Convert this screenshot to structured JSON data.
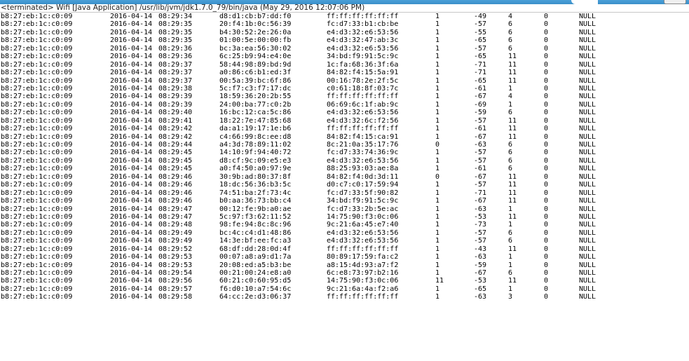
{
  "status": {
    "text": "<terminated> Wifi [Java Application] /usr/lib/jvm/jdk1.7.0_79/bin/java (May 29, 2016 12:07:06 PM)"
  },
  "rows": [
    [
      "b8:27:eb:1c:c0:09",
      "2016-04-14",
      "08:29:34",
      "d8:d1:cb:b7:dd:f0",
      "ff:ff:ff:ff:ff:ff",
      "1",
      "-49",
      "4",
      "0",
      "NULL"
    ],
    [
      "b8:27:eb:1c:c0:09",
      "2016-04-14",
      "08:29:35",
      "20:f4:1b:0c:56:39",
      "fc:d7:33:b1:cb:be",
      "1",
      "-57",
      "6",
      "0",
      "NULL"
    ],
    [
      "b8:27:eb:1c:c0:09",
      "2016-04-14",
      "08:29:35",
      "b4:30:52:2e:26:0a",
      "e4:d3:32:e6:53:56",
      "1",
      "-55",
      "6",
      "0",
      "NULL"
    ],
    [
      "b8:27:eb:1c:c0:09",
      "2016-04-14",
      "08:29:35",
      "01:00:5e:00:00:fb",
      "e4:d3:32:47:ab:3c",
      "1",
      "-65",
      "6",
      "0",
      "NULL"
    ],
    [
      "b8:27:eb:1c:c0:09",
      "2016-04-14",
      "08:29:36",
      "bc:3a:ea:56:30:02",
      "e4:d3:32:e6:53:56",
      "1",
      "-57",
      "6",
      "0",
      "NULL"
    ],
    [
      "b8:27:eb:1c:c0:09",
      "2016-04-14",
      "08:29:36",
      "6c:25:b9:94:e4:0e",
      "34:bd:f9:91:5c:9c",
      "1",
      "-65",
      "11",
      "0",
      "NULL"
    ],
    [
      "b8:27:eb:1c:c0:09",
      "2016-04-14",
      "08:29:37",
      "58:44:98:89:bd:9d",
      "1c:fa:68:36:3f:6a",
      "1",
      "-71",
      "11",
      "0",
      "NULL"
    ],
    [
      "b8:27:eb:1c:c0:09",
      "2016-04-14",
      "08:29:37",
      "a0:86:c6:b1:ed:3f",
      "84:82:f4:15:5a:91",
      "1",
      "-71",
      "11",
      "0",
      "NULL"
    ],
    [
      "b8:27:eb:1c:c0:09",
      "2016-04-14",
      "08:29:37",
      "00:5a:39:bc:6f:86",
      "00:16:78:2e:2f:5c",
      "1",
      "-65",
      "11",
      "0",
      "NULL"
    ],
    [
      "b8:27:eb:1c:c0:09",
      "2016-04-14",
      "08:29:38",
      "5c:f7:c3:f7:17:dc",
      "c0:61:18:8f:03:7c",
      "1",
      "-61",
      "1",
      "0",
      "NULL"
    ],
    [
      "b8:27:eb:1c:c0:09",
      "2016-04-14",
      "08:29:39",
      "18:59:36:20:2b:55",
      "ff:ff:ff:ff:ff:ff",
      "1",
      "-67",
      "4",
      "0",
      "NULL"
    ],
    [
      "b8:27:eb:1c:c0:09",
      "2016-04-14",
      "08:29:39",
      "24:00:ba:77:c0:2b",
      "06:69:6c:1f:ab:9c",
      "1",
      "-69",
      "1",
      "0",
      "NULL"
    ],
    [
      "b8:27:eb:1c:c0:09",
      "2016-04-14",
      "08:29:40",
      "16:bc:12:ca:5c:86",
      "e4:d3:32:e6:53:56",
      "1",
      "-59",
      "6",
      "0",
      "NULL"
    ],
    [
      "b8:27:eb:1c:c0:09",
      "2016-04-14",
      "08:29:41",
      "18:22:7e:47:85:68",
      "e4:d3:32:6c:f2:56",
      "1",
      "-57",
      "11",
      "0",
      "NULL"
    ],
    [
      "b8:27:eb:1c:c0:09",
      "2016-04-14",
      "08:29:42",
      "da:a1:19:17:1e:b6",
      "ff:ff:ff:ff:ff:ff",
      "1",
      "-61",
      "11",
      "0",
      "NULL"
    ],
    [
      "b8:27:eb:1c:c0:09",
      "2016-04-14",
      "08:29:42",
      "c4:66:99:8c:ee:d8",
      "84:82:f4:15:ca:91",
      "1",
      "-67",
      "11",
      "0",
      "NULL"
    ],
    [
      "b8:27:eb:1c:c0:09",
      "2016-04-14",
      "08:29:44",
      "a4:3d:78:89:11:02",
      "8c:21:0a:35:17:76",
      "0",
      "-63",
      "6",
      "0",
      "NULL"
    ],
    [
      "b8:27:eb:1c:c0:09",
      "2016-04-14",
      "08:29:45",
      "14:10:9f:94:40:72",
      "fc:d7:33:74:36:9c",
      "1",
      "-57",
      "6",
      "0",
      "NULL"
    ],
    [
      "b8:27:eb:1c:c0:09",
      "2016-04-14",
      "08:29:45",
      "d8:cf:9c:09:e5:e3",
      "e4:d3:32:e6:53:56",
      "1",
      "-57",
      "6",
      "0",
      "NULL"
    ],
    [
      "b8:27:eb:1c:c0:09",
      "2016-04-14",
      "08:29:45",
      "a0:f4:50:a0:97:9e",
      "88:25:93:03:ae:8a",
      "1",
      "-61",
      "6",
      "0",
      "NULL"
    ],
    [
      "b8:27:eb:1c:c0:09",
      "2016-04-14",
      "08:29:46",
      "30:9b:ad:80:37:8f",
      "84:82:f4:0d:3d:11",
      "0",
      "-67",
      "11",
      "0",
      "NULL"
    ],
    [
      "b8:27:eb:1c:c0:09",
      "2016-04-14",
      "08:29:46",
      "18:dc:56:36:b3:5c",
      "d0:c7:c0:17:59:94",
      "1",
      "-57",
      "11",
      "0",
      "NULL"
    ],
    [
      "b8:27:eb:1c:c0:09",
      "2016-04-14",
      "08:29:46",
      "74:51:ba:2f:73:4c",
      "fc:d7:33:5f:90:82",
      "1",
      "-71",
      "11",
      "0",
      "NULL"
    ],
    [
      "b8:27:eb:1c:c0:09",
      "2016-04-14",
      "08:29:46",
      "b0:aa:36:73:bb:c4",
      "34:bd:f9:91:5c:9c",
      "1",
      "-67",
      "11",
      "0",
      "NULL"
    ],
    [
      "b8:27:eb:1c:c0:09",
      "2016-04-14",
      "08:29:47",
      "00:12:fe:9b:a0:ae",
      "fc:d7:33:2b:5e:ac",
      "1",
      "-63",
      "1",
      "0",
      "NULL"
    ],
    [
      "b8:27:eb:1c:c0:09",
      "2016-04-14",
      "08:29:47",
      "5c:97:f3:62:11:52",
      "14:75:90:f3:0c:06",
      "1",
      "-53",
      "11",
      "0",
      "NULL"
    ],
    [
      "b8:27:eb:1c:c0:09",
      "2016-04-14",
      "08:29:48",
      "98:fe:94:8c:8c:96",
      "9c:21:6a:45:e7:40",
      "1",
      "-73",
      "1",
      "0",
      "NULL"
    ],
    [
      "b8:27:eb:1c:c0:09",
      "2016-04-14",
      "08:29:49",
      "bc:4c:c4:d1:48:86",
      "e4:d3:32:e6:53:56",
      "1",
      "-57",
      "6",
      "0",
      "NULL"
    ],
    [
      "b8:27:eb:1c:c0:09",
      "2016-04-14",
      "08:29:49",
      "14:3e:bf:ee:fc:a3",
      "e4:d3:32:e6:53:56",
      "1",
      "-57",
      "6",
      "0",
      "NULL"
    ],
    [
      "b8:27:eb:1c:c0:09",
      "2016-04-14",
      "08:29:52",
      "68:df:dd:28:0d:4f",
      "ff:ff:ff:ff:ff:ff",
      "1",
      "-43",
      "11",
      "0",
      "NULL"
    ],
    [
      "b8:27:eb:1c:c0:09",
      "2016-04-14",
      "08:29:53",
      "00:07:a8:a9:d1:7a",
      "80:89:17:59:fa:c2",
      "1",
      "-63",
      "1",
      "0",
      "NULL"
    ],
    [
      "b8:27:eb:1c:c0:09",
      "2016-04-14",
      "08:29:53",
      "20:08:ed:a5:b3:be",
      "a8:15:4d:93:a7:f2",
      "1",
      "-59",
      "1",
      "0",
      "NULL"
    ],
    [
      "b8:27:eb:1c:c0:09",
      "2016-04-14",
      "08:29:54",
      "00:21:00:24:e8:a0",
      "6c:e8:73:97:b2:16",
      "1",
      "-67",
      "6",
      "0",
      "NULL"
    ],
    [
      "b8:27:eb:1c:c0:09",
      "2016-04-14",
      "08:29:56",
      "60:21:c0:60:95:d5",
      "14:75:90:f3:0c:06",
      "11",
      "-53",
      "11",
      "0",
      "NULL"
    ],
    [
      "b8:27:eb:1c:c0:09",
      "2016-04-14",
      "08:29:57",
      "f6:d0:10:a7:54:6c",
      "9c:21:6a:4a:f2:a6",
      "1",
      "-65",
      "1",
      "0",
      "NULL"
    ],
    [
      "b8:27:eb:1c:c0:09",
      "2016-04-14",
      "08:29:58",
      "64:cc:2e:d3:06:37",
      "ff:ff:ff:ff:ff:ff",
      "1",
      "-63",
      "3",
      "0",
      "NULL"
    ]
  ]
}
